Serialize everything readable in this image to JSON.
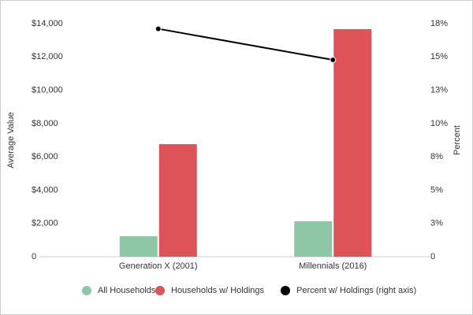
{
  "chart_data": {
    "type": "bar_line",
    "categories": [
      "Generation X (2001)",
      "Millennials (2016)"
    ],
    "series": [
      {
        "name": "All Households",
        "color": "#8ec7a6",
        "values": [
          1230,
          2130
        ]
      },
      {
        "name": "Households w/ Holdings",
        "color": "#dd5357",
        "values": [
          6760,
          13670
        ]
      },
      {
        "name": "Percent w/ Holdings (right axis)",
        "color": "#000000",
        "axis": "y2",
        "values": [
          17.6,
          15.2
        ]
      }
    ],
    "ylabel": "Average Value",
    "y2label": "Percent",
    "ylim": [
      0,
      14000
    ],
    "yticks": [
      0,
      {
        "value": 2000,
        "label": "$2,000"
      },
      {
        "value": 4000,
        "label": "$4,000"
      },
      {
        "value": 6000,
        "label": "$6,000"
      },
      {
        "value": 8000,
        "label": "$8,000"
      },
      {
        "value": 10000,
        "label": "$10,000"
      },
      {
        "value": 12000,
        "label": "$12,000"
      },
      {
        "value": 14000,
        "label": "$14,000"
      }
    ],
    "y2lim": [
      0,
      18
    ],
    "y2ticks": [
      0,
      {
        "value": 2.571,
        "label": "3%"
      },
      {
        "value": 5.143,
        "label": "5%"
      },
      {
        "value": 7.714,
        "label": "8%"
      },
      {
        "value": 10.286,
        "label": "10%"
      },
      {
        "value": 12.857,
        "label": "13%"
      },
      {
        "value": 15.429,
        "label": "15%"
      },
      {
        "value": 18,
        "label": "18%"
      }
    ],
    "grid": false,
    "legend": "bottom"
  }
}
